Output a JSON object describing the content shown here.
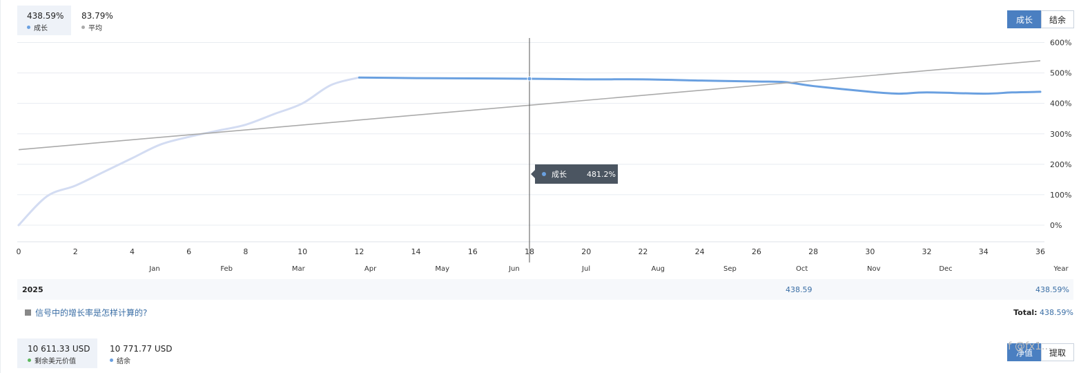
{
  "summary": {
    "growth_value": "438.59%",
    "growth_label": "成长",
    "average_value": "83.79%",
    "average_label": "平均",
    "growth_color": "#6aa0e0",
    "average_color": "#aaaaaa"
  },
  "toggle_top": {
    "growth": "成长",
    "balance": "结余",
    "active": "growth"
  },
  "tooltip": {
    "label": "成长",
    "value": "481.2%"
  },
  "chart_data": {
    "type": "line",
    "x_ticks": [
      "0",
      "2",
      "4",
      "6",
      "8",
      "10",
      "12",
      "14",
      "16",
      "18",
      "20",
      "22",
      "24",
      "26",
      "28",
      "30",
      "32",
      "34",
      "36"
    ],
    "month_labels": [
      "Jan",
      "Feb",
      "Mar",
      "Apr",
      "May",
      "Jun",
      "Jul",
      "Aug",
      "Sep",
      "Oct",
      "Nov",
      "Dec"
    ],
    "x_axis_end_label": "Year",
    "y_ticks": [
      "0%",
      "100%",
      "200%",
      "300%",
      "400%",
      "500%",
      "600%"
    ],
    "xlim": [
      0,
      36
    ],
    "ylim": [
      -60,
      625
    ],
    "grid": true,
    "series": [
      {
        "name": "成长",
        "segment": "faded",
        "color": "#d3dcf2",
        "x": [
          0,
          1,
          2,
          3,
          4,
          5,
          6,
          7,
          8,
          9,
          10,
          11,
          12
        ],
        "y": [
          0,
          95,
          130,
          175,
          220,
          265,
          290,
          310,
          330,
          365,
          400,
          460,
          485
        ]
      },
      {
        "name": "成长",
        "segment": "solid",
        "color": "#6aa0e0",
        "x": [
          12,
          14,
          16,
          18,
          20,
          22,
          24,
          26,
          27,
          28,
          30,
          31,
          32,
          34,
          35,
          36
        ],
        "y": [
          485,
          483,
          482,
          481,
          479,
          479,
          475,
          472,
          470,
          457,
          438,
          432,
          436,
          432,
          436,
          438
        ]
      },
      {
        "name": "平均",
        "segment": "trend",
        "color": "#aaaaaa",
        "x": [
          0,
          36
        ],
        "y": [
          248,
          540
        ]
      }
    ],
    "crosshair_x": 18
  },
  "year_row": {
    "year": "2025",
    "oct_value": "438.59",
    "year_value": "438.59%"
  },
  "help": {
    "text": "信号中的增长率是怎样计算的?"
  },
  "total": {
    "label": "Total:",
    "value": "438.59%"
  },
  "bottom_summary": {
    "equity_value": "10 611.33 USD",
    "equity_label": "剩余美元价值",
    "balance_value": "10 771.77 USD",
    "balance_label": "结余",
    "equity_color": "#5cb85c",
    "balance_color": "#6aa0e0"
  },
  "toggle_bottom": {
    "equity": "净值",
    "withdraw": "提取"
  },
  "watermark": "f @fx1..."
}
